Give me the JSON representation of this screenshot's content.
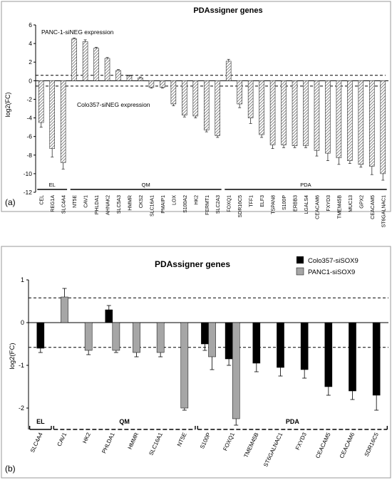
{
  "chart_data": [
    {
      "panel_label": "(a)",
      "type": "bar",
      "title": "PDAssigner genes",
      "ylabel": "log2(FC)",
      "xlabel": "",
      "ylim": [
        -12,
        6
      ],
      "yticks": [
        -12,
        -10,
        -8,
        -6,
        -4,
        -2,
        0,
        2,
        4,
        6
      ],
      "thresholds": [
        0.58,
        -0.58
      ],
      "annotations": [
        "PANC-1-siNEG expression",
        "Colo357-siNEG expression"
      ],
      "group_labels": [
        "EL",
        "QM",
        "PDA"
      ],
      "bar_style": "hatched",
      "categories": [
        "CEL",
        "REG1A",
        "SLC4A4",
        "NT5E",
        "CAV1",
        "PHLDA1",
        "AHNAK2",
        "SLC5A3",
        "HMMR",
        "CKS2",
        "SLC16A1",
        "PMAIP1",
        "LOX",
        "S100A2",
        "HK2",
        "FERMT1",
        "SLC2A3",
        "FOXQ1",
        "SDR16C5",
        "TFF1",
        "ELF3",
        "TSPAN8",
        "S100P",
        "ERBB3",
        "LGALS4",
        "CEACAM6",
        "FXYD3",
        "TMEM45B",
        "MUC13",
        "GPX2",
        "CEACAM5",
        "ST6GALNAC1"
      ],
      "groups": [
        "EL",
        "EL",
        "EL",
        "QM",
        "QM",
        "QM",
        "QM",
        "QM",
        "QM",
        "QM",
        "QM",
        "QM",
        "QM",
        "QM",
        "QM",
        "QM",
        "QM",
        "PDA",
        "PDA",
        "PDA",
        "PDA",
        "PDA",
        "PDA",
        "PDA",
        "PDA",
        "PDA",
        "PDA",
        "PDA",
        "PDA",
        "PDA",
        "PDA",
        "PDA"
      ],
      "values": [
        -4.5,
        -7.3,
        -8.8,
        4.5,
        4.2,
        3.5,
        2.4,
        1.1,
        0.5,
        0.3,
        -0.7,
        -0.7,
        -2.5,
        -3.7,
        -3.8,
        -5.3,
        -5.9,
        2.1,
        -2.5,
        -4.0,
        -5.8,
        -6.9,
        -6.9,
        -7.0,
        -7.0,
        -7.5,
        -7.8,
        -8.3,
        -8.6,
        -9.0,
        -9.2,
        -10.0
      ],
      "errors": [
        0.5,
        0.9,
        0.7,
        0.1,
        0.2,
        0.1,
        0.1,
        0.1,
        0.1,
        0.1,
        0.1,
        0.1,
        0.2,
        0.2,
        0.2,
        0.2,
        0.2,
        0.2,
        0.4,
        0.6,
        0.3,
        0.4,
        0.3,
        0.2,
        0.2,
        0.6,
        0.8,
        0.7,
        0.3,
        0.3,
        0.9,
        0.7
      ]
    },
    {
      "panel_label": "(b)",
      "type": "bar",
      "title": "PDAssigner genes",
      "ylabel": "log2(FC)",
      "xlabel": "",
      "ylim": [
        -2.5,
        1
      ],
      "yticks": [
        -2,
        -1,
        0,
        1
      ],
      "thresholds": [
        0.58,
        -0.58
      ],
      "group_labels": [
        "EL",
        "QM",
        "PDA"
      ],
      "categories": [
        "SLC4A4",
        "CAV1",
        "HK2",
        "PHLDA1",
        "HMMR",
        "SLC16A1",
        "NT5E",
        "S100P",
        "FOXQ1",
        "TMEM45B",
        "ST6GALNAC1",
        "FXYD3",
        "CEACAM5",
        "CEACAM6",
        "SDR16C5"
      ],
      "groups": [
        "EL",
        "QM",
        "QM",
        "QM",
        "QM",
        "QM",
        "QM",
        "PDA",
        "PDA",
        "PDA",
        "PDA",
        "PDA",
        "PDA",
        "PDA",
        "PDA"
      ],
      "series": [
        {
          "name": "Colo357-siSOX9",
          "color": "#000000",
          "values": [
            -0.6,
            null,
            null,
            0.3,
            null,
            null,
            null,
            -0.5,
            -0.85,
            -0.95,
            -1.05,
            -1.1,
            -1.5,
            -1.6,
            -1.7
          ],
          "errors": [
            0.1,
            null,
            null,
            0.1,
            null,
            null,
            null,
            0.15,
            0.15,
            0.2,
            0.2,
            0.2,
            0.2,
            0.2,
            0.35
          ]
        },
        {
          "name": "PANC1-siSOX9",
          "color": "#a6a6a6",
          "values": [
            null,
            0.6,
            -0.65,
            -0.65,
            -0.7,
            -0.7,
            -2.0,
            -0.8,
            -2.25,
            null,
            null,
            null,
            null,
            null,
            null
          ],
          "errors": [
            null,
            0.2,
            0.1,
            0.05,
            0.1,
            0.1,
            0.05,
            0.3,
            0.15,
            null,
            null,
            null,
            null,
            null,
            null
          ]
        }
      ]
    }
  ]
}
